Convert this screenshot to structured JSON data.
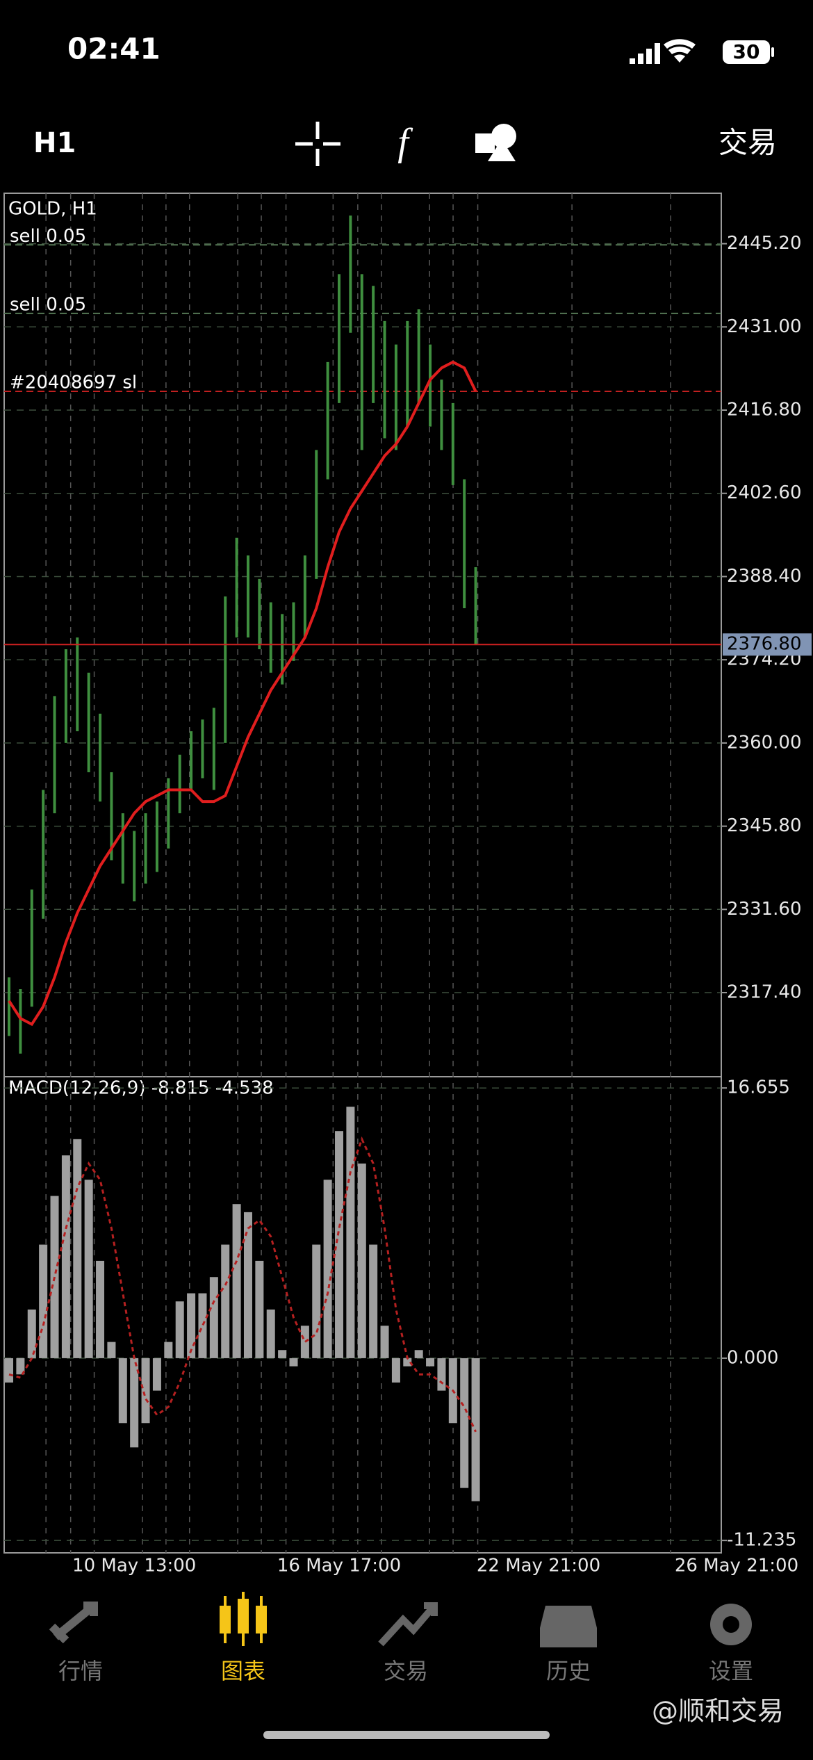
{
  "status_bar": {
    "time": "02:41",
    "battery": "30"
  },
  "toolbar": {
    "timeframe": "H1",
    "trade": "交易"
  },
  "chart_data": [
    {
      "type": "candlestick",
      "title": "GOLD, H1",
      "high": [
        2320,
        2318,
        2335,
        2352,
        2368,
        2376,
        2378,
        2372,
        2365,
        2355,
        2348,
        2345,
        2348,
        2350,
        2354,
        2358,
        2362,
        2364,
        2366,
        2385,
        2395,
        2392,
        2388,
        2384,
        2382,
        2384,
        2392,
        2410,
        2425,
        2440,
        2450,
        2440,
        2438,
        2432,
        2428,
        2432,
        2434,
        2428,
        2422,
        2418,
        2405,
        2390
      ],
      "low": [
        2310,
        2307,
        2315,
        2330,
        2348,
        2360,
        2362,
        2355,
        2350,
        2340,
        2336,
        2333,
        2336,
        2338,
        2342,
        2348,
        2352,
        2354,
        2352,
        2360,
        2378,
        2378,
        2376,
        2372,
        2370,
        2374,
        2378,
        2388,
        2405,
        2418,
        2430,
        2410,
        2418,
        2412,
        2410,
        2414,
        2418,
        2414,
        2410,
        2404,
        2383,
        2376.8
      ],
      "color": "#3f8f3f",
      "ma": {
        "color": "#e01e1e",
        "values": [
          2316,
          2313,
          2312,
          2315,
          2320,
          2326,
          2331,
          2335,
          2339,
          2342,
          2345,
          2348,
          2350,
          2351,
          2352,
          2352,
          2352,
          2350,
          2350,
          2351,
          2356,
          2361,
          2365,
          2369,
          2372,
          2375,
          2378,
          2383,
          2390,
          2396,
          2400,
          2403,
          2406,
          2409,
          2411,
          2414,
          2418,
          2422,
          2424,
          2425,
          2424,
          2420
        ]
      },
      "ylim": [
        2303.05,
        2453.81
      ],
      "yticks": [
        {
          "value": 2317.4,
          "label": "2317.40"
        },
        {
          "value": 2331.6,
          "label": "2331.60"
        },
        {
          "value": 2345.8,
          "label": "2345.80"
        },
        {
          "value": 2360,
          "label": "2360.00"
        },
        {
          "value": 2374.2,
          "label": "2374.20"
        },
        {
          "value": 2388.4,
          "label": "2388.40"
        },
        {
          "value": 2402.6,
          "label": "2402.60"
        },
        {
          "value": 2416.8,
          "label": "2416.80"
        },
        {
          "value": 2431,
          "label": "2431.00"
        },
        {
          "value": 2445.2,
          "label": "2445.20"
        }
      ],
      "grid": true,
      "order_lines": [
        {
          "label": "sell 0.05",
          "price": 2445.0
        },
        {
          "label": "sell 0.05",
          "price": 2433.3
        },
        {
          "label": "#20408697 sl",
          "price": 2420.0
        }
      ],
      "last_price": {
        "value": 2376.8,
        "label": "2376.80"
      }
    },
    {
      "type": "macd",
      "title": "MACD(12,26,9) -8.815 -4.538",
      "histogram": [
        -1.5,
        -1,
        3,
        7,
        10,
        12.5,
        13.5,
        11,
        6,
        1,
        -4,
        -5.5,
        -4,
        -2,
        1,
        3.5,
        4,
        4,
        5,
        7,
        9.5,
        9,
        6,
        3,
        0.5,
        -0.5,
        2,
        7,
        11,
        14,
        15.5,
        12,
        7,
        2,
        -1.5,
        -0.5,
        0.5,
        -0.5,
        -2,
        -4,
        -8,
        -8.815
      ],
      "signal": [
        -1,
        -1.2,
        0,
        2,
        5,
        8,
        10.5,
        12,
        11,
        8,
        4,
        0,
        -2.5,
        -3.5,
        -3,
        -1.5,
        0.5,
        2,
        3.5,
        4.5,
        6,
        8,
        8.5,
        7.5,
        5,
        2.5,
        1,
        1.5,
        4,
        8,
        11.5,
        13.5,
        12,
        8,
        3,
        0,
        -1,
        -1,
        -1.5,
        -2,
        -3,
        -4.538
      ],
      "color": "#a0a0a0",
      "signal_color": "#b52020",
      "ylim": [
        -12,
        17.35
      ],
      "yticks": [
        16.655,
        {
          "value": 0,
          "label": "0.000"
        },
        -11.235
      ],
      "categories": [
        null,
        null,
        null,
        null,
        null,
        null,
        null,
        null,
        null,
        null,
        null,
        "10 May 13:00",
        null,
        null,
        null,
        null,
        null,
        null,
        null,
        null,
        null,
        null,
        null,
        null,
        null,
        null,
        null,
        null,
        null,
        "16 May 17:00",
        null,
        null,
        null,
        null,
        null,
        null,
        null,
        null,
        null,
        null,
        null,
        null
      ],
      "future_categories": [
        "22 May 21:00",
        "26 May 21:00"
      ]
    }
  ],
  "tab_bar": {
    "items": [
      "行情",
      "图表",
      "交易",
      "历史",
      "设置"
    ],
    "active": 1
  },
  "watermark": "@顺和交易"
}
